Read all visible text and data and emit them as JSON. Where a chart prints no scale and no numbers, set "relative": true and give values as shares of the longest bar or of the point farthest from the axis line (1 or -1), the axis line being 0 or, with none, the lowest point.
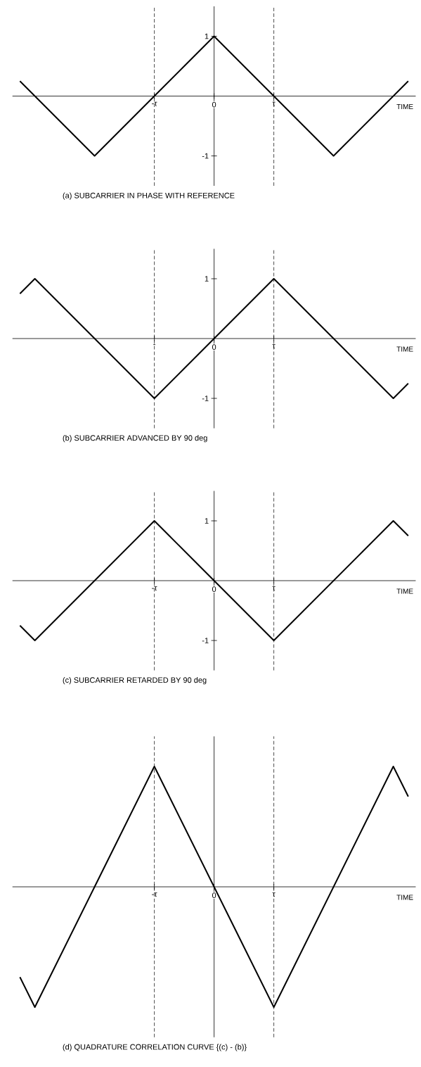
{
  "chart_data": [
    {
      "type": "line",
      "title": "(a)  SUBCARRIER IN PHASE WITH REFERENCE",
      "xlabel": "TIME",
      "categories": [
        null,
        null,
        null,
        null,
        null,
        null,
        null,
        null,
        null,
        "-τ",
        null,
        null,
        null,
        "0",
        null,
        null,
        null,
        "τ",
        null,
        null,
        null,
        null,
        null,
        null,
        null,
        null,
        null
      ],
      "series": [
        {
          "color": "#000000",
          "values": [
            0.25,
            0,
            -0.25,
            -0.5,
            -0.75,
            -1,
            -0.75,
            -0.5,
            -0.25,
            0,
            0.25,
            0.5,
            0.75,
            1,
            0.75,
            0.5,
            0.25,
            0,
            -0.25,
            -0.5,
            -0.75,
            -1,
            -0.75,
            -0.5,
            -0.25,
            0,
            0.25
          ]
        }
      ],
      "ylim": [
        -1.5,
        1.5
      ],
      "yticks": [
        -1,
        1
      ],
      "ref_lines": [
        {
          "axis": "x",
          "value": "-τ",
          "color": "#000000",
          "line_style": "dashed"
        },
        {
          "axis": "x",
          "value": "τ",
          "color": "#000000",
          "line_style": "dashed"
        }
      ]
    },
    {
      "type": "line",
      "title": "(b)  SUBCARRIER ADVANCED BY 90 deg",
      "xlabel": "TIME",
      "categories": [
        null,
        null,
        null,
        null,
        null,
        null,
        null,
        null,
        null,
        "-",
        null,
        null,
        null,
        "0",
        null,
        null,
        null,
        "τ",
        null,
        null,
        null,
        null,
        null,
        null,
        null,
        null,
        null
      ],
      "series": [
        {
          "color": "#000000",
          "values": [
            0.75,
            1,
            0.75,
            0.5,
            0.25,
            0,
            -0.25,
            -0.5,
            -0.75,
            -1,
            -0.75,
            -0.5,
            -0.25,
            0,
            0.25,
            0.5,
            0.75,
            1,
            0.75,
            0.5,
            0.25,
            0,
            -0.25,
            -0.5,
            -0.75,
            -1,
            -0.75
          ]
        }
      ],
      "ylim": [
        -1.5,
        1.5
      ],
      "yticks": [
        -1,
        1
      ],
      "ref_lines": [
        {
          "axis": "x",
          "value": "-",
          "color": "#000000",
          "line_style": "dashed"
        },
        {
          "axis": "x",
          "value": "τ",
          "color": "#000000",
          "line_style": "dashed"
        }
      ]
    },
    {
      "type": "line",
      "title": "(c)  SUBCARRIER RETARDED BY 90 deg",
      "xlabel": "TIME",
      "categories": [
        null,
        null,
        null,
        null,
        null,
        null,
        null,
        null,
        null,
        "-τ",
        null,
        null,
        null,
        "0",
        null,
        null,
        null,
        "τ",
        null,
        null,
        null,
        null,
        null,
        null,
        null,
        null,
        null
      ],
      "series": [
        {
          "color": "#000000",
          "values": [
            -0.75,
            -1,
            -0.75,
            -0.5,
            -0.25,
            0,
            0.25,
            0.5,
            0.75,
            1,
            0.75,
            0.5,
            0.25,
            0,
            -0.25,
            -0.5,
            -0.75,
            -1,
            -0.75,
            -0.5,
            -0.25,
            0,
            0.25,
            0.5,
            0.75,
            1,
            0.75
          ]
        }
      ],
      "ylim": [
        -1.5,
        1.5
      ],
      "yticks": [
        -1,
        1
      ],
      "ref_lines": [
        {
          "axis": "x",
          "value": "-τ",
          "color": "#000000",
          "line_style": "dashed"
        },
        {
          "axis": "x",
          "value": "τ",
          "color": "#000000",
          "line_style": "dashed"
        }
      ]
    },
    {
      "type": "line",
      "title": "(d)  QUADRATURE CORRELATION CURVE  {(c) - (b)}",
      "xlabel": "TIME",
      "relative": true,
      "tick_labels": "x",
      "categories": [
        null,
        null,
        null,
        null,
        null,
        null,
        null,
        null,
        null,
        "-τ",
        null,
        null,
        null,
        "0",
        null,
        null,
        null,
        "τ",
        null,
        null,
        null,
        null,
        null,
        null,
        null,
        null,
        null
      ],
      "series": [
        {
          "color": "#000000",
          "values": [
            -0.75,
            -1,
            -0.75,
            -0.5,
            -0.25,
            0,
            0.25,
            0.5,
            0.75,
            1,
            0.75,
            0.5,
            0.25,
            0,
            -0.25,
            -0.5,
            -0.75,
            -1,
            -0.75,
            -0.5,
            -0.25,
            0,
            0.25,
            0.5,
            0.75,
            1,
            0.75
          ]
        }
      ],
      "ref_lines": [
        {
          "axis": "x",
          "value": "-τ",
          "color": "#000000",
          "line_style": "dashed"
        },
        {
          "axis": "x",
          "value": "τ",
          "color": "#000000",
          "line_style": "dashed"
        }
      ]
    }
  ]
}
